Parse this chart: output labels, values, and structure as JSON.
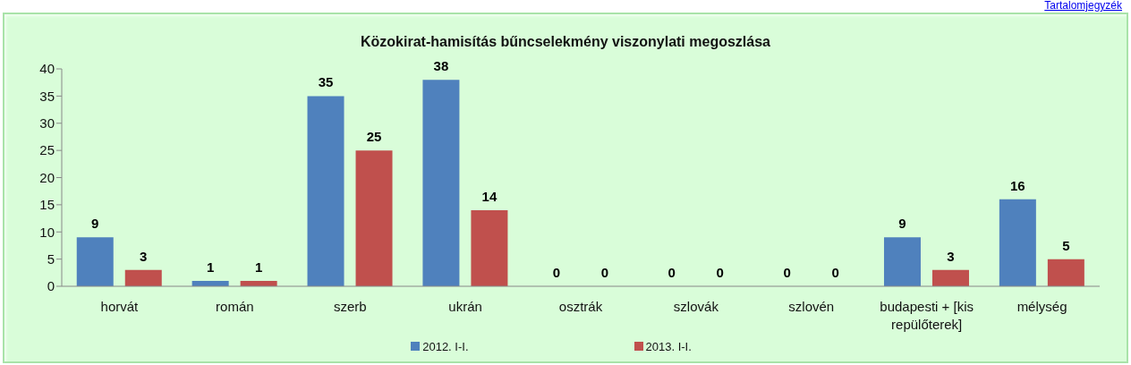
{
  "chart_data": {
    "type": "bar",
    "title": "Közokirat-hamisítás bűncselekmény viszonylati megoszlása",
    "categories": [
      "horvát",
      "román",
      "szerb",
      "ukrán",
      "osztrák",
      "szlovák",
      "szlovén",
      "budapesti + [kis repülőterek]",
      "mélység"
    ],
    "series": [
      {
        "name": "2012. I-I.",
        "color": "#4f81bd",
        "values": [
          9,
          1,
          35,
          38,
          0,
          0,
          0,
          9,
          16
        ]
      },
      {
        "name": "2013. I-I.",
        "color": "#c0504d",
        "values": [
          3,
          1,
          25,
          14,
          0,
          0,
          0,
          3,
          5
        ]
      }
    ],
    "ylim": [
      0,
      40
    ],
    "yticks": [
      0,
      5,
      10,
      15,
      20,
      25,
      30,
      35,
      40
    ],
    "legend": "bottom",
    "data_labels": true,
    "annotations": [
      "Tartalomjegyzék"
    ]
  }
}
